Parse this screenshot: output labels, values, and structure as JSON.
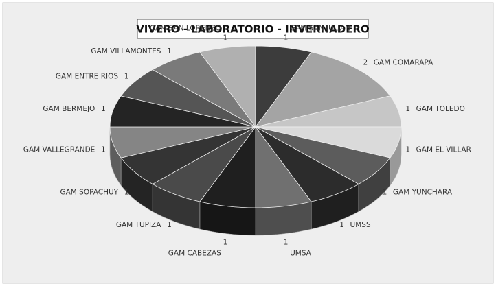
{
  "chart_data": {
    "type": "pie3d",
    "title": "VIVERO - LABORATORIO - INVERNADERO",
    "categories": [
      "GAM SAN JULIAN",
      "GAM COMARAPA",
      "GAM TOLEDO",
      "GAM EL VILLAR",
      "GAM YUNCHARA",
      "UMSS",
      "UMSA",
      "GAM CABEZAS",
      "GAM TUPIZA",
      "GAM SOPACHUY",
      "GAM VALLEGRANDE",
      "GAM BERMEJO",
      "GAM ENTRE RIOS",
      "GAM VILLAMONTES",
      "GAM SAN LORENZO"
    ],
    "values": [
      1,
      2,
      1,
      1,
      1,
      1,
      1,
      1,
      1,
      1,
      1,
      1,
      1,
      1,
      1
    ],
    "colors": [
      "#3c3c3c",
      "#a4a4a4",
      "#c6c6c6",
      "#dadada",
      "#5c5c5c",
      "#2c2c2c",
      "#707070",
      "#1f1f1f",
      "#4a4a4a",
      "#343434",
      "#858585",
      "#242424",
      "#555555",
      "#7a7a7a",
      "#b0b0b0"
    ]
  }
}
